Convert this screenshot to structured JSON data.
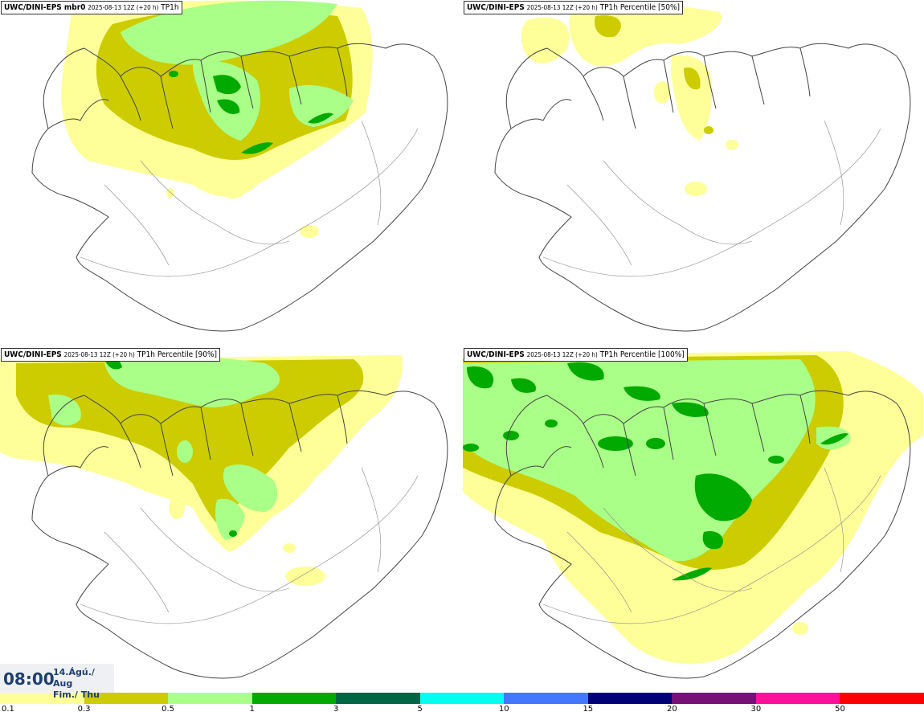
{
  "panels": [
    {
      "model": "UWC/DINI-EPS mbr0",
      "run": "2025-08-13 12Z (+20 h)",
      "product": "TP1h"
    },
    {
      "model": "UWC/DINI-EPS",
      "run": "2025-08-13 12Z (+20 h)",
      "product": "TP1h Percentile [50%]"
    },
    {
      "model": "UWC/DINI-EPS",
      "run": "2025-08-13 12Z (+20 h)",
      "product": "TP1h Percentile [90%]"
    },
    {
      "model": "UWC/DINI-EPS",
      "run": "2025-08-13 12Z (+20 h)",
      "product": "TP1h Percentile [100%]"
    }
  ],
  "valid_time": {
    "time": "08:00",
    "date_line1": "14.Ágú./ Aug",
    "date_line2": "Fim./ Thu"
  },
  "legend": {
    "colors": [
      "#ffff99",
      "#cccc00",
      "#aaff88",
      "#00aa00",
      "#006644",
      "#00ffee",
      "#4477ff",
      "#000077",
      "#771177",
      "#ff1199",
      "#ff0000"
    ],
    "ticks": [
      "0.1",
      "0.3",
      "0.5",
      "1",
      "3",
      "5",
      "10",
      "15",
      "20",
      "30",
      "50"
    ]
  }
}
